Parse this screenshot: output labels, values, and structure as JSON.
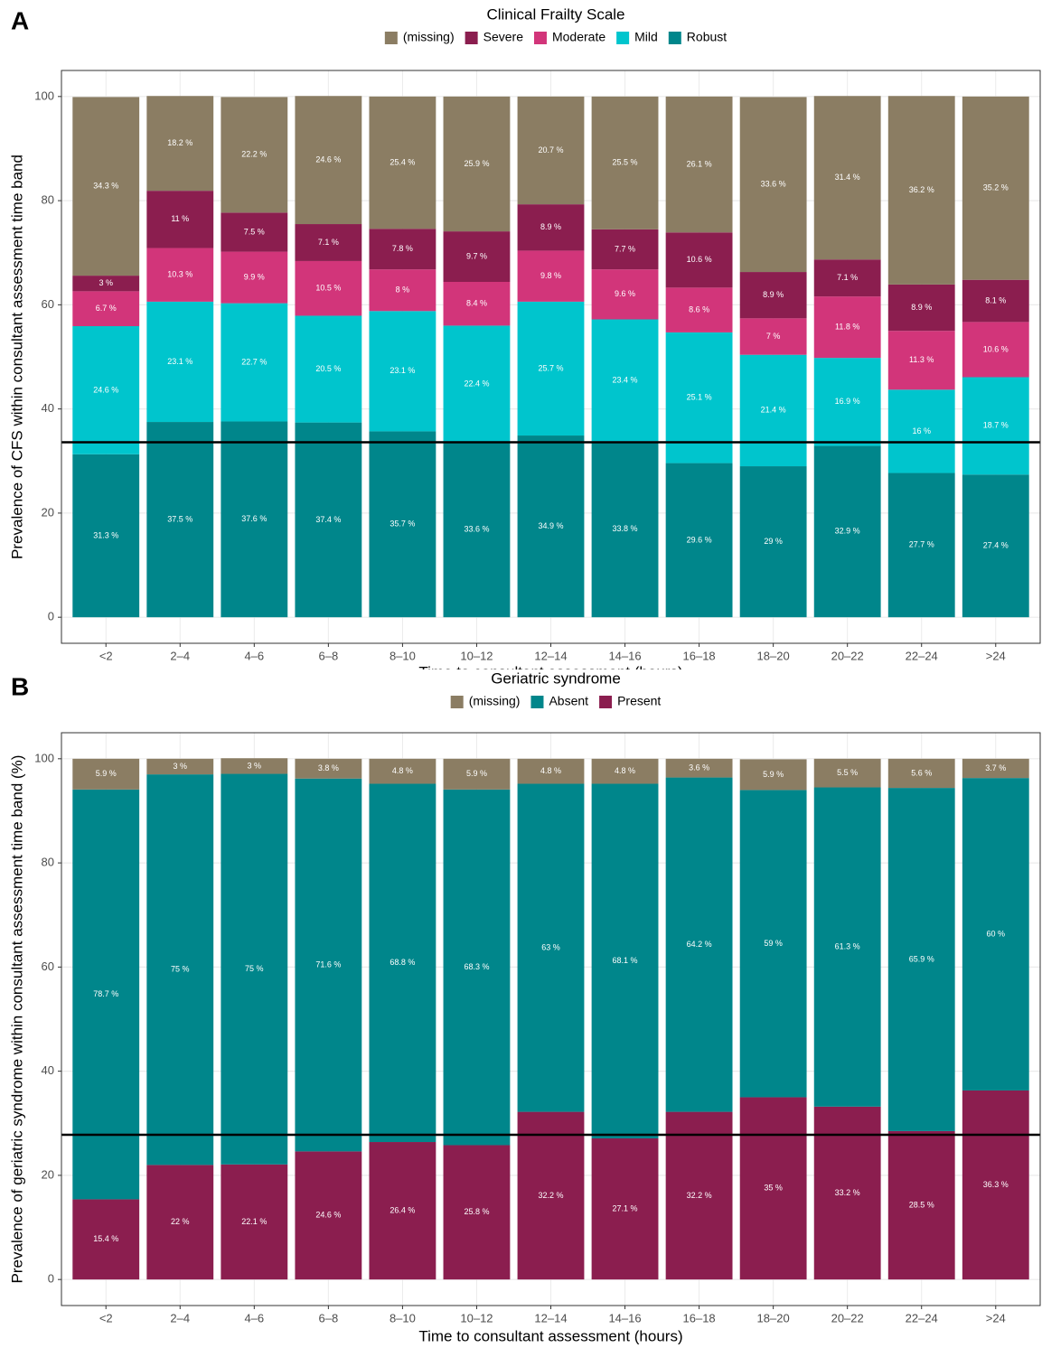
{
  "chart_data": [
    {
      "type": "bar",
      "stacked": true,
      "panel": "A",
      "legend_title": "Clinical Frailty Scale",
      "ylabel": "Prevalence of CFS within consultant assessment time band",
      "xlabel": "Time to consultant assessment (hours)",
      "categories": [
        "<2",
        "2–4",
        "4–6",
        "6–8",
        "8–10",
        "10–12",
        "12–14",
        "14–16",
        "16–18",
        "18–20",
        "20–22",
        "22–24",
        ">24"
      ],
      "series": [
        {
          "name": "Robust",
          "color": "#00868b",
          "values": [
            31.3,
            37.5,
            37.6,
            37.4,
            35.7,
            33.6,
            34.9,
            33.8,
            29.6,
            29,
            32.9,
            27.7,
            27.4
          ],
          "value_labels": [
            "31.3 %",
            "37.5 %",
            "37.6 %",
            "37.4 %",
            "35.7 %",
            "33.6 %",
            "34.9 %",
            "33.8 %",
            "29.6 %",
            "29 %",
            "32.9 %",
            "27.7 %",
            "27.4 %"
          ]
        },
        {
          "name": "Mild",
          "color": "#00c5cd",
          "values": [
            24.6,
            23.1,
            22.7,
            20.5,
            23.1,
            22.4,
            25.7,
            23.4,
            25.1,
            21.4,
            16.9,
            16,
            18.7
          ],
          "value_labels": [
            "24.6 %",
            "23.1 %",
            "22.7 %",
            "20.5 %",
            "23.1 %",
            "22.4 %",
            "25.7 %",
            "23.4 %",
            "25.1 %",
            "21.4 %",
            "16.9 %",
            "16 %",
            "18.7 %"
          ]
        },
        {
          "name": "Moderate",
          "color": "#d2357a",
          "values": [
            6.7,
            10.3,
            9.9,
            10.5,
            8,
            8.4,
            9.8,
            9.6,
            8.6,
            7,
            11.8,
            11.3,
            10.6
          ],
          "value_labels": [
            "6.7 %",
            "10.3 %",
            "9.9 %",
            "10.5 %",
            "8 %",
            "8.4 %",
            "9.8 %",
            "9.6 %",
            "8.6 %",
            "7 %",
            "11.8 %",
            "11.3 %",
            "10.6 %"
          ]
        },
        {
          "name": "Severe",
          "color": "#8b1e4f",
          "values": [
            3,
            11,
            7.5,
            7.1,
            7.8,
            9.7,
            8.9,
            7.7,
            10.6,
            8.9,
            7.1,
            8.9,
            8.1
          ],
          "value_labels": [
            "3 %",
            "11 %",
            "7.5 %",
            "7.1 %",
            "7.8 %",
            "9.7 %",
            "8.9 %",
            "7.7 %",
            "10.6 %",
            "8.9 %",
            "7.1 %",
            "8.9 %",
            "8.1 %"
          ]
        },
        {
          "name": "(missing)",
          "color": "#8b7d63",
          "values": [
            34.3,
            18.2,
            22.2,
            24.6,
            25.4,
            25.9,
            20.7,
            25.5,
            26.1,
            33.6,
            31.4,
            36.2,
            35.2
          ],
          "value_labels": [
            "34.3 %",
            "18.2 %",
            "22.2 %",
            "24.6 %",
            "25.4 %",
            "25.9 %",
            "20.7 %",
            "25.5 %",
            "26.1 %",
            "33.6 %",
            "31.4 %",
            "36.2 %",
            "35.2 %"
          ]
        }
      ],
      "reference_line": 33.6,
      "ylim": [
        -5,
        105
      ],
      "yticks": [
        0,
        20,
        40,
        60,
        80,
        100
      ],
      "grid": true
    },
    {
      "type": "bar",
      "stacked": true,
      "panel": "B",
      "legend_title": "Geriatric syndrome",
      "ylabel": "Prevalence of geriatric syndrome within consultant assessment time band (%)",
      "xlabel": "Time to consultant assessment (hours)",
      "categories": [
        "<2",
        "2–4",
        "4–6",
        "6–8",
        "8–10",
        "10–12",
        "12–14",
        "14–16",
        "16–18",
        "18–20",
        "20–22",
        "22–24",
        ">24"
      ],
      "series": [
        {
          "name": "Present",
          "color": "#8b1e4f",
          "values": [
            15.4,
            22,
            22.1,
            24.6,
            26.4,
            25.8,
            32.2,
            27.1,
            32.2,
            35,
            33.2,
            28.5,
            36.3
          ],
          "value_labels": [
            "15.4 %",
            "22 %",
            "22.1 %",
            "24.6 %",
            "26.4 %",
            "25.8 %",
            "32.2 %",
            "27.1 %",
            "32.2 %",
            "35 %",
            "33.2 %",
            "28.5 %",
            "36.3 %"
          ]
        },
        {
          "name": "Absent",
          "color": "#00868b",
          "values": [
            78.7,
            75,
            75,
            71.6,
            68.8,
            68.3,
            63,
            68.1,
            64.2,
            59,
            61.3,
            65.9,
            60
          ],
          "value_labels": [
            "78.7 %",
            "75 %",
            "75 %",
            "71.6 %",
            "68.8 %",
            "68.3 %",
            "63 %",
            "68.1 %",
            "64.2 %",
            "59 %",
            "61.3 %",
            "65.9 %",
            "60 %"
          ]
        },
        {
          "name": "(missing)",
          "color": "#8b7d63",
          "values": [
            5.9,
            3,
            3,
            3.8,
            4.8,
            5.9,
            4.8,
            4.8,
            3.6,
            5.9,
            5.5,
            5.6,
            3.7
          ],
          "value_labels": [
            "5.9 %",
            "3 %",
            "3 %",
            "3.8 %",
            "4.8 %",
            "5.9 %",
            "4.8 %",
            "4.8 %",
            "3.6 %",
            "5.9 %",
            "5.5 %",
            "5.6 %",
            "3.7 %"
          ]
        }
      ],
      "reference_line": 27.8,
      "ylim": [
        -5,
        105
      ],
      "yticks": [
        0,
        20,
        40,
        60,
        80,
        100
      ],
      "grid": true
    }
  ]
}
